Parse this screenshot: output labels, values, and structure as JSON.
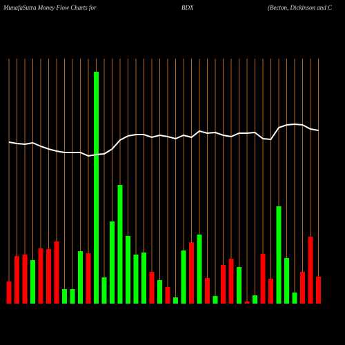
{
  "chart_data": {
    "type": "bar",
    "title": "MunafaSutra  Money  Flow  Charts for",
    "ticker": "BDX",
    "company": "(Becton,  Dickinson  and  C",
    "ylim": [
      0,
      360
    ],
    "values": [
      32,
      69,
      71,
      63,
      80,
      79,
      90,
      21,
      21,
      76,
      73,
      336,
      38,
      119,
      172,
      98,
      71,
      74,
      46,
      34,
      24,
      9,
      77,
      89,
      100,
      37,
      11,
      56,
      65,
      53,
      3,
      12,
      72,
      36,
      141,
      66,
      16,
      46,
      97,
      39
    ],
    "colors": [
      "#ff0000",
      "#ff0000",
      "#ff0000",
      "#00ff00",
      "#ff0000",
      "#ff0000",
      "#ff0000",
      "#00ff00",
      "#00ff00",
      "#00ff00",
      "#ff0000",
      "#00ff00",
      "#00ff00",
      "#00ff00",
      "#00ff00",
      "#00ff00",
      "#00ff00",
      "#00ff00",
      "#ff0000",
      "#00ff00",
      "#ff0000",
      "#00ff00",
      "#00ff00",
      "#ff0000",
      "#00ff00",
      "#ff0000",
      "#00ff00",
      "#ff0000",
      "#ff0000",
      "#00ff00",
      "#ff0000",
      "#00ff00",
      "#ff0000",
      "#ff0000",
      "#00ff00",
      "#00ff00",
      "#00ff00",
      "#ff0000",
      "#ff0000",
      "#ff0000"
    ],
    "line": {
      "color": "#ffffff",
      "values": [
        234,
        232,
        231,
        233,
        228,
        224,
        221,
        219,
        219,
        219,
        214,
        216,
        217,
        224,
        237,
        243,
        245,
        245,
        241,
        244,
        242,
        239,
        244,
        241,
        250,
        247,
        248,
        244,
        242,
        247,
        247,
        248,
        239,
        238,
        255,
        259,
        260,
        259,
        253,
        251
      ]
    },
    "grid_color": "#b8651b"
  }
}
